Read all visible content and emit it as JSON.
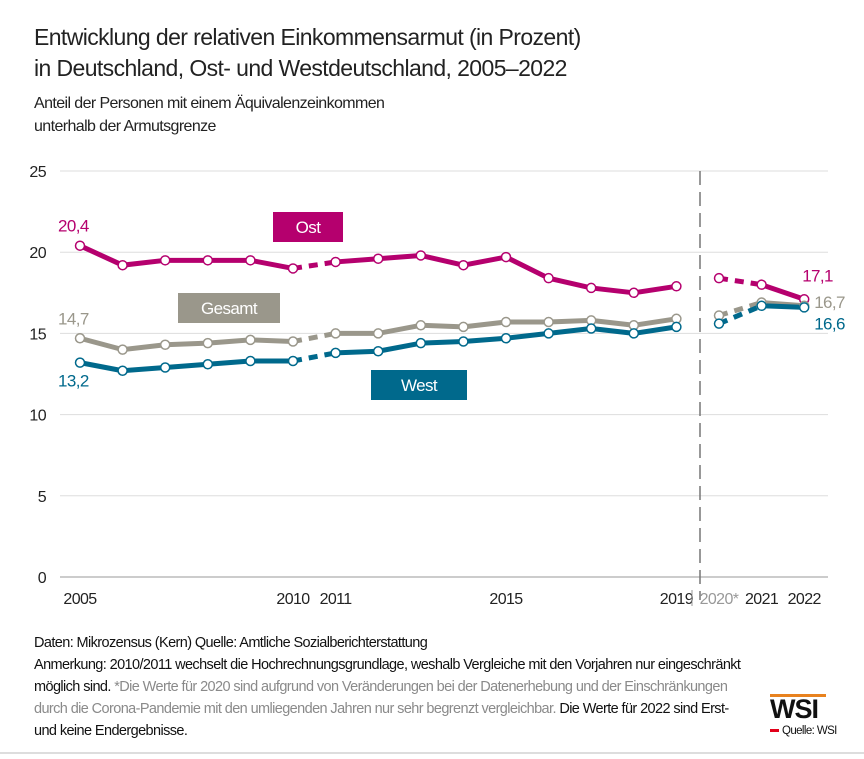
{
  "title_line1": "Entwicklung der relativen Einkommensarmut (in Prozent)",
  "title_line2": "in Deutschland, Ost- und Westdeutschland, 2005–2022",
  "subtitle_line1": "Anteil der Personen mit einem Äquivalenzeinkommen",
  "subtitle_line2": "unterhalb der Armutsgrenze",
  "footer": {
    "line1": "Daten: Mikrozensus (Kern)   Quelle: Amtliche Sozialberichterstattung",
    "note_black1": "Anmerkung: 2010/2011 wechselt die Hochrechnungsgrundlage, weshalb Vergleiche mit den Vorjahren nur eingeschränkt möglich sind.",
    "note_grey": " *Die Werte für 2020 sind aufgrund von Veränderungen bei der Datenerhebung und der Einschränkungen durch die Corona-Pandemie mit den umliegenden Jahren nur sehr begrenzt vergleichbar.",
    "note_black2": " Die Werte für 2022 sind Erst- und keine Endergebnisse."
  },
  "logo": {
    "text": "WSI",
    "source": "Quelle: WSI"
  },
  "chart_data": {
    "type": "line",
    "ylim": [
      0,
      25
    ],
    "yticks": [
      0,
      5,
      10,
      15,
      20,
      25
    ],
    "grid": true,
    "x": [
      2005,
      2006,
      2007,
      2008,
      2009,
      2010,
      2011,
      2012,
      2013,
      2014,
      2015,
      2016,
      2017,
      2018,
      2019,
      2020,
      2021,
      2022
    ],
    "xtick_labels": [
      "2005",
      "2010",
      "2011",
      "2015",
      "2019",
      "2020*",
      "2021",
      "2022"
    ],
    "xtick_years": [
      2005,
      2010,
      2011,
      2015,
      2019,
      2020,
      2021,
      2022
    ],
    "series": [
      {
        "name": "Ost",
        "color": "#b5006e",
        "values": [
          20.4,
          19.2,
          19.5,
          19.5,
          19.5,
          19.0,
          19.4,
          19.6,
          19.8,
          19.2,
          19.7,
          18.4,
          17.8,
          17.5,
          17.9,
          18.4,
          18.0,
          17.1
        ],
        "start_label": "20,4",
        "end_label": "17,1"
      },
      {
        "name": "Gesamt",
        "color": "#9a978b",
        "values": [
          14.7,
          14.0,
          14.3,
          14.4,
          14.6,
          14.5,
          15.0,
          15.0,
          15.5,
          15.4,
          15.7,
          15.7,
          15.8,
          15.5,
          15.9,
          16.1,
          16.9,
          16.7
        ],
        "start_label": "14,7",
        "end_label": "16,7"
      },
      {
        "name": "West",
        "color": "#00698c",
        "values": [
          13.2,
          12.7,
          12.9,
          13.1,
          13.3,
          13.3,
          13.8,
          13.9,
          14.4,
          14.5,
          14.7,
          15.0,
          15.3,
          15.0,
          15.4,
          15.6,
          16.7,
          16.6
        ],
        "start_label": "13,2",
        "end_label": "16,6"
      }
    ]
  }
}
